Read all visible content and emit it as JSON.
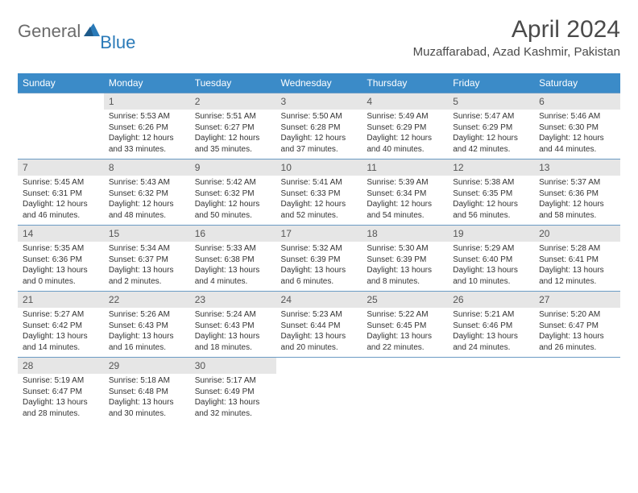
{
  "logo": {
    "textGray": "General",
    "textBlue": "Blue"
  },
  "title": "April 2024",
  "location": "Muzaffarabad, Azad Kashmir, Pakistan",
  "colors": {
    "headerBg": "#3b8bc8",
    "headerText": "#ffffff",
    "dayBarBg": "#e6e6e6",
    "rowBorder": "#6a9bc4",
    "bodyText": "#333333",
    "titleText": "#4a4a4a",
    "logoGray": "#6b6b6b",
    "logoBlue": "#2a7ab8"
  },
  "dayHeaders": [
    "Sunday",
    "Monday",
    "Tuesday",
    "Wednesday",
    "Thursday",
    "Friday",
    "Saturday"
  ],
  "weeks": [
    [
      null,
      {
        "n": "1",
        "sr": "Sunrise: 5:53 AM",
        "ss": "Sunset: 6:26 PM",
        "d1": "Daylight: 12 hours",
        "d2": "and 33 minutes."
      },
      {
        "n": "2",
        "sr": "Sunrise: 5:51 AM",
        "ss": "Sunset: 6:27 PM",
        "d1": "Daylight: 12 hours",
        "d2": "and 35 minutes."
      },
      {
        "n": "3",
        "sr": "Sunrise: 5:50 AM",
        "ss": "Sunset: 6:28 PM",
        "d1": "Daylight: 12 hours",
        "d2": "and 37 minutes."
      },
      {
        "n": "4",
        "sr": "Sunrise: 5:49 AM",
        "ss": "Sunset: 6:29 PM",
        "d1": "Daylight: 12 hours",
        "d2": "and 40 minutes."
      },
      {
        "n": "5",
        "sr": "Sunrise: 5:47 AM",
        "ss": "Sunset: 6:29 PM",
        "d1": "Daylight: 12 hours",
        "d2": "and 42 minutes."
      },
      {
        "n": "6",
        "sr": "Sunrise: 5:46 AM",
        "ss": "Sunset: 6:30 PM",
        "d1": "Daylight: 12 hours",
        "d2": "and 44 minutes."
      }
    ],
    [
      {
        "n": "7",
        "sr": "Sunrise: 5:45 AM",
        "ss": "Sunset: 6:31 PM",
        "d1": "Daylight: 12 hours",
        "d2": "and 46 minutes."
      },
      {
        "n": "8",
        "sr": "Sunrise: 5:43 AM",
        "ss": "Sunset: 6:32 PM",
        "d1": "Daylight: 12 hours",
        "d2": "and 48 minutes."
      },
      {
        "n": "9",
        "sr": "Sunrise: 5:42 AM",
        "ss": "Sunset: 6:32 PM",
        "d1": "Daylight: 12 hours",
        "d2": "and 50 minutes."
      },
      {
        "n": "10",
        "sr": "Sunrise: 5:41 AM",
        "ss": "Sunset: 6:33 PM",
        "d1": "Daylight: 12 hours",
        "d2": "and 52 minutes."
      },
      {
        "n": "11",
        "sr": "Sunrise: 5:39 AM",
        "ss": "Sunset: 6:34 PM",
        "d1": "Daylight: 12 hours",
        "d2": "and 54 minutes."
      },
      {
        "n": "12",
        "sr": "Sunrise: 5:38 AM",
        "ss": "Sunset: 6:35 PM",
        "d1": "Daylight: 12 hours",
        "d2": "and 56 minutes."
      },
      {
        "n": "13",
        "sr": "Sunrise: 5:37 AM",
        "ss": "Sunset: 6:36 PM",
        "d1": "Daylight: 12 hours",
        "d2": "and 58 minutes."
      }
    ],
    [
      {
        "n": "14",
        "sr": "Sunrise: 5:35 AM",
        "ss": "Sunset: 6:36 PM",
        "d1": "Daylight: 13 hours",
        "d2": "and 0 minutes."
      },
      {
        "n": "15",
        "sr": "Sunrise: 5:34 AM",
        "ss": "Sunset: 6:37 PM",
        "d1": "Daylight: 13 hours",
        "d2": "and 2 minutes."
      },
      {
        "n": "16",
        "sr": "Sunrise: 5:33 AM",
        "ss": "Sunset: 6:38 PM",
        "d1": "Daylight: 13 hours",
        "d2": "and 4 minutes."
      },
      {
        "n": "17",
        "sr": "Sunrise: 5:32 AM",
        "ss": "Sunset: 6:39 PM",
        "d1": "Daylight: 13 hours",
        "d2": "and 6 minutes."
      },
      {
        "n": "18",
        "sr": "Sunrise: 5:30 AM",
        "ss": "Sunset: 6:39 PM",
        "d1": "Daylight: 13 hours",
        "d2": "and 8 minutes."
      },
      {
        "n": "19",
        "sr": "Sunrise: 5:29 AM",
        "ss": "Sunset: 6:40 PM",
        "d1": "Daylight: 13 hours",
        "d2": "and 10 minutes."
      },
      {
        "n": "20",
        "sr": "Sunrise: 5:28 AM",
        "ss": "Sunset: 6:41 PM",
        "d1": "Daylight: 13 hours",
        "d2": "and 12 minutes."
      }
    ],
    [
      {
        "n": "21",
        "sr": "Sunrise: 5:27 AM",
        "ss": "Sunset: 6:42 PM",
        "d1": "Daylight: 13 hours",
        "d2": "and 14 minutes."
      },
      {
        "n": "22",
        "sr": "Sunrise: 5:26 AM",
        "ss": "Sunset: 6:43 PM",
        "d1": "Daylight: 13 hours",
        "d2": "and 16 minutes."
      },
      {
        "n": "23",
        "sr": "Sunrise: 5:24 AM",
        "ss": "Sunset: 6:43 PM",
        "d1": "Daylight: 13 hours",
        "d2": "and 18 minutes."
      },
      {
        "n": "24",
        "sr": "Sunrise: 5:23 AM",
        "ss": "Sunset: 6:44 PM",
        "d1": "Daylight: 13 hours",
        "d2": "and 20 minutes."
      },
      {
        "n": "25",
        "sr": "Sunrise: 5:22 AM",
        "ss": "Sunset: 6:45 PM",
        "d1": "Daylight: 13 hours",
        "d2": "and 22 minutes."
      },
      {
        "n": "26",
        "sr": "Sunrise: 5:21 AM",
        "ss": "Sunset: 6:46 PM",
        "d1": "Daylight: 13 hours",
        "d2": "and 24 minutes."
      },
      {
        "n": "27",
        "sr": "Sunrise: 5:20 AM",
        "ss": "Sunset: 6:47 PM",
        "d1": "Daylight: 13 hours",
        "d2": "and 26 minutes."
      }
    ],
    [
      {
        "n": "28",
        "sr": "Sunrise: 5:19 AM",
        "ss": "Sunset: 6:47 PM",
        "d1": "Daylight: 13 hours",
        "d2": "and 28 minutes."
      },
      {
        "n": "29",
        "sr": "Sunrise: 5:18 AM",
        "ss": "Sunset: 6:48 PM",
        "d1": "Daylight: 13 hours",
        "d2": "and 30 minutes."
      },
      {
        "n": "30",
        "sr": "Sunrise: 5:17 AM",
        "ss": "Sunset: 6:49 PM",
        "d1": "Daylight: 13 hours",
        "d2": "and 32 minutes."
      },
      null,
      null,
      null,
      null
    ]
  ]
}
